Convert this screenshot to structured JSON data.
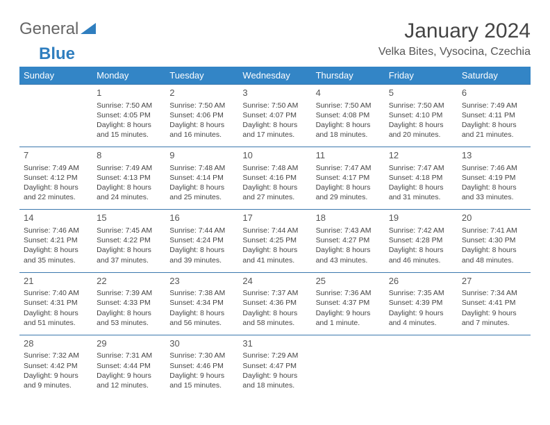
{
  "logo": {
    "text1": "General",
    "text2": "Blue"
  },
  "title": "January 2024",
  "location": "Velka Bites, Vysocina, Czechia",
  "colors": {
    "header_bg": "#3385c6",
    "header_text": "#ffffff",
    "row_border": "#3a77ad",
    "body_text": "#444444",
    "logo_blue": "#2f7ebf",
    "background": "#ffffff"
  },
  "dayHeaders": [
    "Sunday",
    "Monday",
    "Tuesday",
    "Wednesday",
    "Thursday",
    "Friday",
    "Saturday"
  ],
  "weeks": [
    [
      null,
      {
        "n": "1",
        "sr": "Sunrise: 7:50 AM",
        "ss": "Sunset: 4:05 PM",
        "d1": "Daylight: 8 hours",
        "d2": "and 15 minutes."
      },
      {
        "n": "2",
        "sr": "Sunrise: 7:50 AM",
        "ss": "Sunset: 4:06 PM",
        "d1": "Daylight: 8 hours",
        "d2": "and 16 minutes."
      },
      {
        "n": "3",
        "sr": "Sunrise: 7:50 AM",
        "ss": "Sunset: 4:07 PM",
        "d1": "Daylight: 8 hours",
        "d2": "and 17 minutes."
      },
      {
        "n": "4",
        "sr": "Sunrise: 7:50 AM",
        "ss": "Sunset: 4:08 PM",
        "d1": "Daylight: 8 hours",
        "d2": "and 18 minutes."
      },
      {
        "n": "5",
        "sr": "Sunrise: 7:50 AM",
        "ss": "Sunset: 4:10 PM",
        "d1": "Daylight: 8 hours",
        "d2": "and 20 minutes."
      },
      {
        "n": "6",
        "sr": "Sunrise: 7:49 AM",
        "ss": "Sunset: 4:11 PM",
        "d1": "Daylight: 8 hours",
        "d2": "and 21 minutes."
      }
    ],
    [
      {
        "n": "7",
        "sr": "Sunrise: 7:49 AM",
        "ss": "Sunset: 4:12 PM",
        "d1": "Daylight: 8 hours",
        "d2": "and 22 minutes."
      },
      {
        "n": "8",
        "sr": "Sunrise: 7:49 AM",
        "ss": "Sunset: 4:13 PM",
        "d1": "Daylight: 8 hours",
        "d2": "and 24 minutes."
      },
      {
        "n": "9",
        "sr": "Sunrise: 7:48 AM",
        "ss": "Sunset: 4:14 PM",
        "d1": "Daylight: 8 hours",
        "d2": "and 25 minutes."
      },
      {
        "n": "10",
        "sr": "Sunrise: 7:48 AM",
        "ss": "Sunset: 4:16 PM",
        "d1": "Daylight: 8 hours",
        "d2": "and 27 minutes."
      },
      {
        "n": "11",
        "sr": "Sunrise: 7:47 AM",
        "ss": "Sunset: 4:17 PM",
        "d1": "Daylight: 8 hours",
        "d2": "and 29 minutes."
      },
      {
        "n": "12",
        "sr": "Sunrise: 7:47 AM",
        "ss": "Sunset: 4:18 PM",
        "d1": "Daylight: 8 hours",
        "d2": "and 31 minutes."
      },
      {
        "n": "13",
        "sr": "Sunrise: 7:46 AM",
        "ss": "Sunset: 4:19 PM",
        "d1": "Daylight: 8 hours",
        "d2": "and 33 minutes."
      }
    ],
    [
      {
        "n": "14",
        "sr": "Sunrise: 7:46 AM",
        "ss": "Sunset: 4:21 PM",
        "d1": "Daylight: 8 hours",
        "d2": "and 35 minutes."
      },
      {
        "n": "15",
        "sr": "Sunrise: 7:45 AM",
        "ss": "Sunset: 4:22 PM",
        "d1": "Daylight: 8 hours",
        "d2": "and 37 minutes."
      },
      {
        "n": "16",
        "sr": "Sunrise: 7:44 AM",
        "ss": "Sunset: 4:24 PM",
        "d1": "Daylight: 8 hours",
        "d2": "and 39 minutes."
      },
      {
        "n": "17",
        "sr": "Sunrise: 7:44 AM",
        "ss": "Sunset: 4:25 PM",
        "d1": "Daylight: 8 hours",
        "d2": "and 41 minutes."
      },
      {
        "n": "18",
        "sr": "Sunrise: 7:43 AM",
        "ss": "Sunset: 4:27 PM",
        "d1": "Daylight: 8 hours",
        "d2": "and 43 minutes."
      },
      {
        "n": "19",
        "sr": "Sunrise: 7:42 AM",
        "ss": "Sunset: 4:28 PM",
        "d1": "Daylight: 8 hours",
        "d2": "and 46 minutes."
      },
      {
        "n": "20",
        "sr": "Sunrise: 7:41 AM",
        "ss": "Sunset: 4:30 PM",
        "d1": "Daylight: 8 hours",
        "d2": "and 48 minutes."
      }
    ],
    [
      {
        "n": "21",
        "sr": "Sunrise: 7:40 AM",
        "ss": "Sunset: 4:31 PM",
        "d1": "Daylight: 8 hours",
        "d2": "and 51 minutes."
      },
      {
        "n": "22",
        "sr": "Sunrise: 7:39 AM",
        "ss": "Sunset: 4:33 PM",
        "d1": "Daylight: 8 hours",
        "d2": "and 53 minutes."
      },
      {
        "n": "23",
        "sr": "Sunrise: 7:38 AM",
        "ss": "Sunset: 4:34 PM",
        "d1": "Daylight: 8 hours",
        "d2": "and 56 minutes."
      },
      {
        "n": "24",
        "sr": "Sunrise: 7:37 AM",
        "ss": "Sunset: 4:36 PM",
        "d1": "Daylight: 8 hours",
        "d2": "and 58 minutes."
      },
      {
        "n": "25",
        "sr": "Sunrise: 7:36 AM",
        "ss": "Sunset: 4:37 PM",
        "d1": "Daylight: 9 hours",
        "d2": "and 1 minute."
      },
      {
        "n": "26",
        "sr": "Sunrise: 7:35 AM",
        "ss": "Sunset: 4:39 PM",
        "d1": "Daylight: 9 hours",
        "d2": "and 4 minutes."
      },
      {
        "n": "27",
        "sr": "Sunrise: 7:34 AM",
        "ss": "Sunset: 4:41 PM",
        "d1": "Daylight: 9 hours",
        "d2": "and 7 minutes."
      }
    ],
    [
      {
        "n": "28",
        "sr": "Sunrise: 7:32 AM",
        "ss": "Sunset: 4:42 PM",
        "d1": "Daylight: 9 hours",
        "d2": "and 9 minutes."
      },
      {
        "n": "29",
        "sr": "Sunrise: 7:31 AM",
        "ss": "Sunset: 4:44 PM",
        "d1": "Daylight: 9 hours",
        "d2": "and 12 minutes."
      },
      {
        "n": "30",
        "sr": "Sunrise: 7:30 AM",
        "ss": "Sunset: 4:46 PM",
        "d1": "Daylight: 9 hours",
        "d2": "and 15 minutes."
      },
      {
        "n": "31",
        "sr": "Sunrise: 7:29 AM",
        "ss": "Sunset: 4:47 PM",
        "d1": "Daylight: 9 hours",
        "d2": "and 18 minutes."
      },
      null,
      null,
      null
    ]
  ]
}
